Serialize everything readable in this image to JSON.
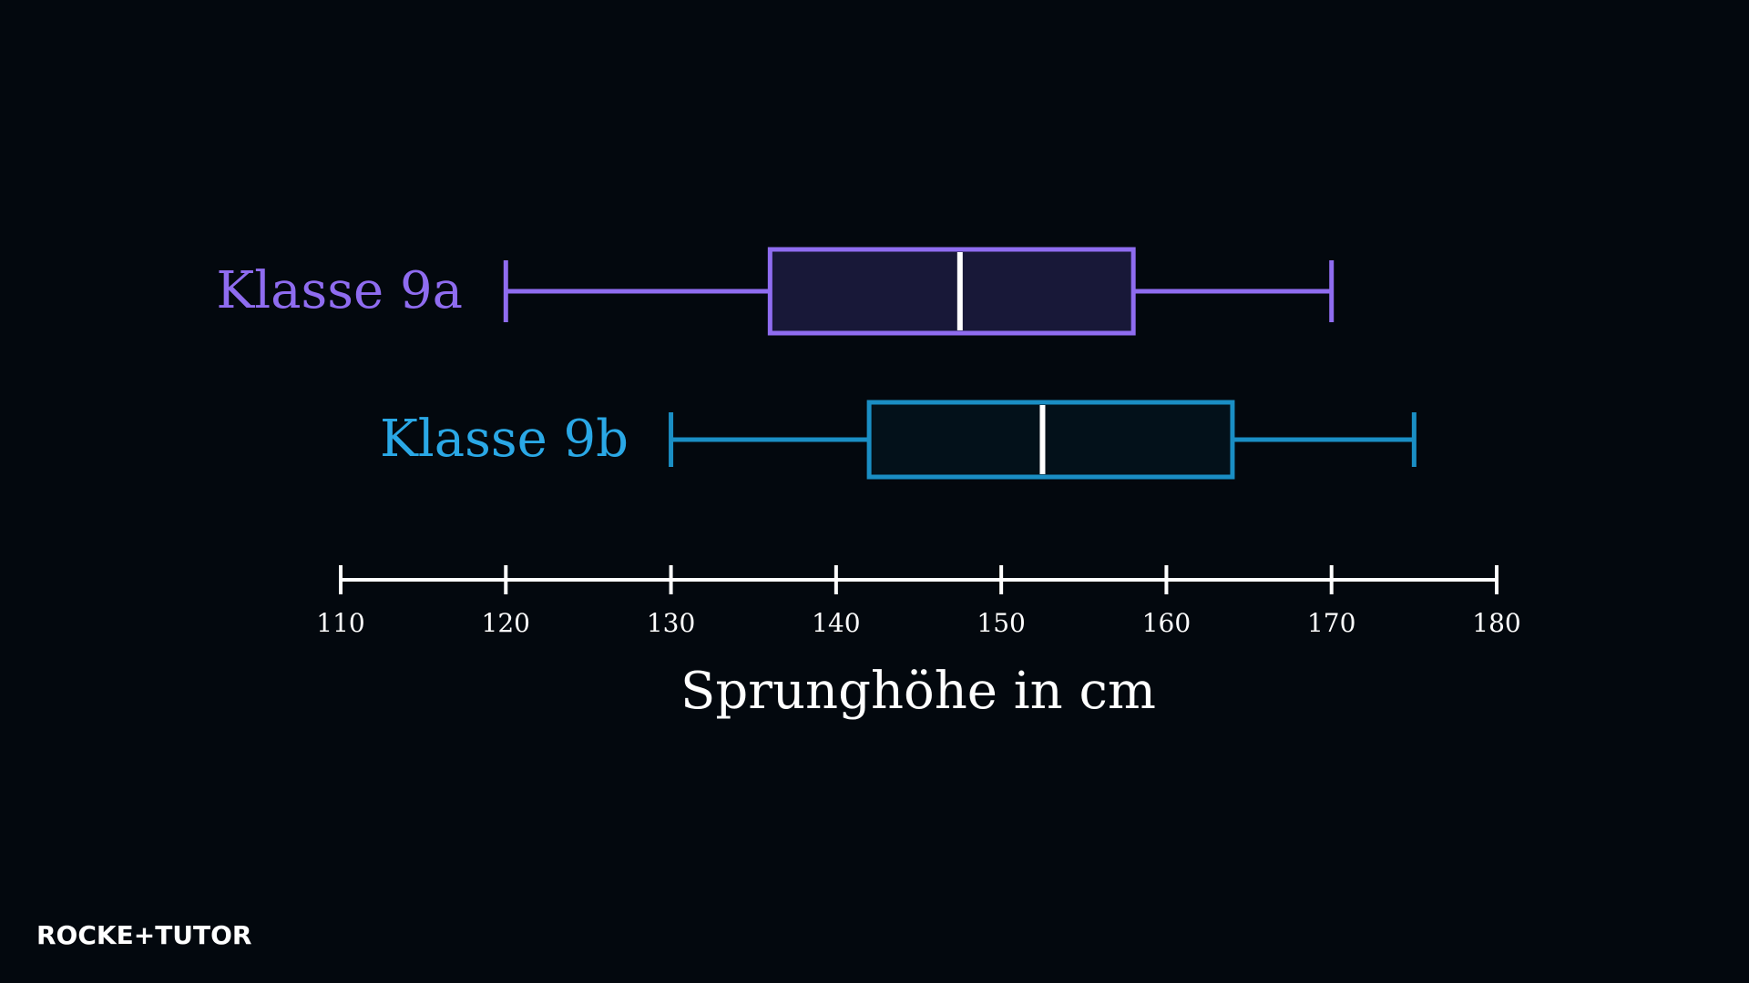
{
  "chart_data": {
    "type": "boxplot",
    "xlabel": "Sprunghöhe in cm",
    "xlim": [
      110,
      180
    ],
    "ticks": [
      110,
      120,
      130,
      140,
      150,
      160,
      170,
      180
    ],
    "series": [
      {
        "name": "Klasse 9a",
        "min": 120,
        "q1": 136,
        "median": 147.5,
        "q3": 158,
        "max": 170,
        "color": "#8f6cf0",
        "fill": "#181838"
      },
      {
        "name": "Klasse 9b",
        "min": 130,
        "q1": 142,
        "median": 152.5,
        "q3": 164,
        "max": 175,
        "color": "#1a8ec4",
        "fill": "#03111a",
        "label_color": "#2aa8e6"
      }
    ]
  },
  "brand": {
    "name": "ROCKETTUTOR",
    "text": "ROCKE+TUTOR"
  }
}
